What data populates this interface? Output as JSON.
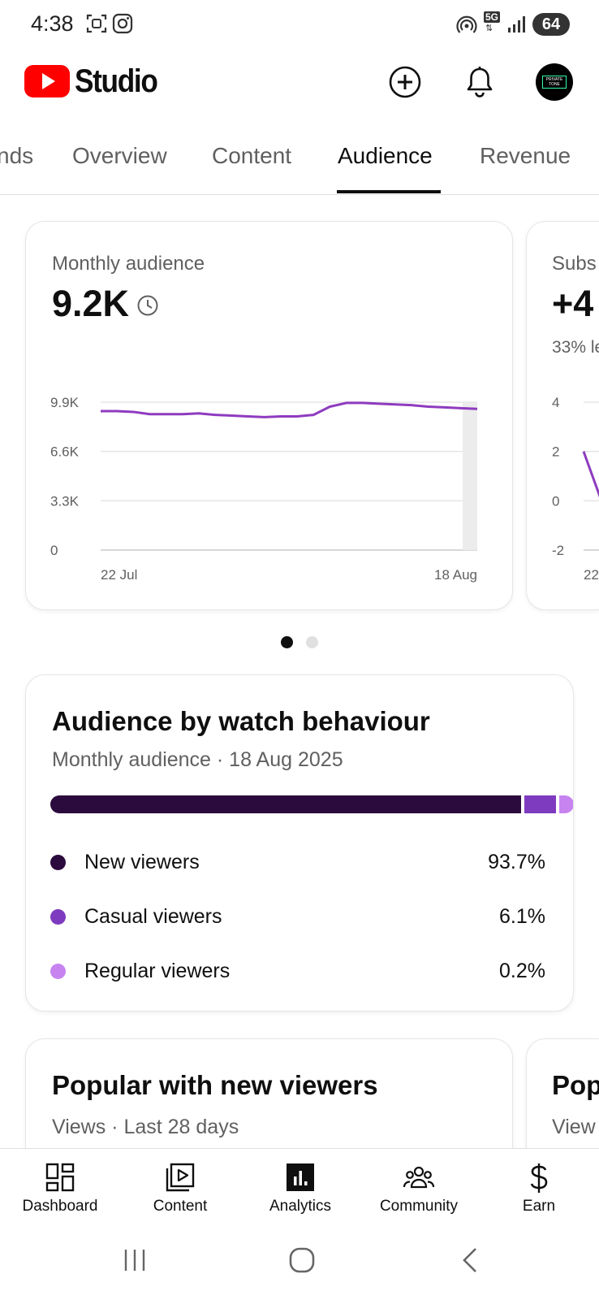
{
  "status_bar": {
    "time": "4:38",
    "network": "5G",
    "battery": "64",
    "icons": [
      "screenshot-icon",
      "instagram-icon",
      "hotspot-icon",
      "network-5g-icon",
      "signal-icon",
      "battery-icon"
    ]
  },
  "header": {
    "app_name": "Studio",
    "logo_icon": "youtube-logo-icon",
    "create_icon": "add-circle-icon",
    "notifications_icon": "bell-icon",
    "avatar_text": "PRIVATE TONE"
  },
  "tabs": [
    {
      "label": "nds"
    },
    {
      "label": "Overview"
    },
    {
      "label": "Content"
    },
    {
      "label": "Audience",
      "active": true
    },
    {
      "label": "Revenue"
    }
  ],
  "monthly_audience_card": {
    "label": "Monthly audience",
    "value": "9.2K",
    "value_icon": "clock-icon",
    "chart_data": {
      "type": "line",
      "title": "Monthly audience",
      "y_ticks": [
        "9.9K",
        "6.6K",
        "3.3K",
        "0"
      ],
      "x_ticks": [
        "22 Jul",
        "18 Aug"
      ],
      "ylim": [
        0,
        9900
      ],
      "grid": true,
      "series": [
        {
          "color": "#8e3bbf",
          "values": [
            9300,
            9300,
            9250,
            9100,
            9100,
            9100,
            9150,
            9050,
            9000,
            8950,
            8900,
            8950,
            8950,
            9050,
            9600,
            9850,
            9850,
            9800,
            9750,
            9700,
            9600,
            9550,
            9500,
            9450
          ]
        }
      ]
    }
  },
  "subscribers_card": {
    "label": "Subs",
    "value": "+4",
    "sublabel": "33% le",
    "chart_data": {
      "type": "line",
      "y_ticks": [
        "4",
        "2",
        "0",
        "-2"
      ],
      "x_ticks": [
        "22"
      ],
      "ylim": [
        -2,
        4
      ],
      "grid": true,
      "series": [
        {
          "color": "#8e3bbf",
          "values": [
            2,
            0
          ]
        }
      ]
    }
  },
  "pager": {
    "active_index": 0,
    "count": 2
  },
  "watch_behaviour": {
    "title": "Audience by watch behaviour",
    "subtitle": "Monthly audience · 18 Aug 2025",
    "segments": [
      {
        "label": "New viewers",
        "value_text": "93.7%",
        "percent": 93.7,
        "color": "#2b0a3d"
      },
      {
        "label": "Casual viewers",
        "value_text": "6.1%",
        "percent": 6.1,
        "color": "#7e3bbf"
      },
      {
        "label": "Regular viewers",
        "value_text": "0.2%",
        "percent": 0.2,
        "color": "#c784f0"
      }
    ]
  },
  "popular_new_viewers": {
    "title": "Popular with new viewers",
    "subtitle": "Views · Last 28 days"
  },
  "popular_peek": {
    "title": "Pop",
    "subtitle": "View"
  },
  "bottom_nav": [
    {
      "label": "Dashboard",
      "icon": "dashboard-icon"
    },
    {
      "label": "Content",
      "icon": "content-icon"
    },
    {
      "label": "Analytics",
      "icon": "analytics-icon",
      "active": true
    },
    {
      "label": "Community",
      "icon": "community-icon"
    },
    {
      "label": "Earn",
      "icon": "earn-icon"
    }
  ],
  "system_nav": [
    "recent-apps-icon",
    "home-icon",
    "back-icon"
  ]
}
